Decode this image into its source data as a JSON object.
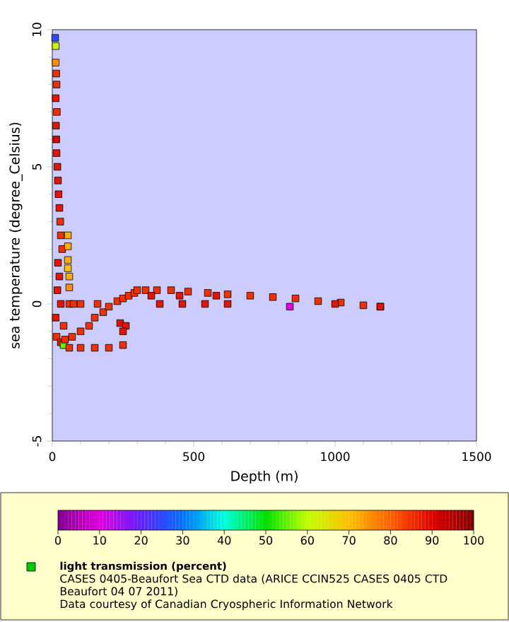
{
  "chart_data": {
    "type": "scatter",
    "xlabel": "Depth (m)",
    "ylabel": "sea temperature (degree_Celsius)",
    "clabel": "light transmission (percent)",
    "annotations": [
      "CASES 0405-Beaufort Sea CTD data (ARICE CCIN525 CASES 0405 CTD Beaufort 04 07 2011)",
      "Data courtesy of Canadian Cryospheric Information Network"
    ],
    "x": [
      10,
      12,
      12,
      14,
      15,
      12,
      16,
      13,
      14,
      15,
      18,
      20,
      22,
      25,
      28,
      30,
      35,
      55,
      55,
      55,
      55,
      60,
      60,
      20,
      25,
      18,
      30,
      60,
      75,
      100,
      160,
      12,
      40,
      15,
      30,
      40,
      45,
      70,
      100,
      130,
      150,
      180,
      200,
      230,
      250,
      270,
      290,
      300,
      330,
      370,
      420,
      480,
      550,
      620,
      700,
      780,
      860,
      940,
      1020,
      1100,
      1160,
      60,
      100,
      150,
      200,
      250,
      240,
      260,
      250,
      350,
      380,
      450,
      460,
      540,
      580,
      620,
      840,
      1000,
      1160
    ],
    "values": [
      9.7,
      9.4,
      8.8,
      8.4,
      8.0,
      7.5,
      7.0,
      6.5,
      6.0,
      5.5,
      5.0,
      4.5,
      4.0,
      3.5,
      3.0,
      2.5,
      2.0,
      2.5,
      2.1,
      1.6,
      1.3,
      1.0,
      0.6,
      1.5,
      1.0,
      0.5,
      0.0,
      0.0,
      0.0,
      0.0,
      0.0,
      -0.5,
      -0.8,
      -1.2,
      -1.4,
      -1.5,
      -1.3,
      -1.2,
      -1.0,
      -0.8,
      -0.5,
      -0.3,
      -0.1,
      0.1,
      0.2,
      0.3,
      0.4,
      0.5,
      0.5,
      0.5,
      0.5,
      0.45,
      0.4,
      0.35,
      0.3,
      0.25,
      0.2,
      0.1,
      0.05,
      -0.05,
      -0.1,
      -1.6,
      -1.6,
      -1.6,
      -1.6,
      -1.5,
      -0.7,
      -0.8,
      -1.0,
      0.3,
      0.0,
      0.3,
      0.0,
      0.0,
      0.3,
      0.0,
      -0.1,
      0.0,
      -0.1
    ],
    "cvalues": [
      25,
      62,
      75,
      85,
      85,
      88,
      85,
      88,
      90,
      88,
      88,
      88,
      88,
      88,
      85,
      85,
      85,
      72,
      72,
      72,
      70,
      72,
      75,
      88,
      88,
      88,
      88,
      85,
      85,
      85,
      85,
      88,
      85,
      85,
      88,
      55,
      85,
      85,
      85,
      85,
      85,
      85,
      85,
      85,
      85,
      85,
      85,
      85,
      85,
      85,
      85,
      85,
      85,
      85,
      85,
      85,
      85,
      85,
      85,
      85,
      85,
      85,
      85,
      85,
      85,
      85,
      88,
      88,
      88,
      88,
      88,
      88,
      88,
      88,
      88,
      88,
      10,
      88,
      88
    ],
    "xlim": [
      0,
      1500
    ],
    "ylim": [
      -5,
      10
    ],
    "xticks": [
      0,
      500,
      1000,
      1500
    ],
    "yticks": [
      -5,
      0,
      5,
      10
    ],
    "clim": [
      0,
      100
    ],
    "cticks": [
      0,
      10,
      20,
      30,
      40,
      50,
      60,
      70,
      80,
      90,
      100
    ],
    "marker": "square",
    "grid": false
  }
}
